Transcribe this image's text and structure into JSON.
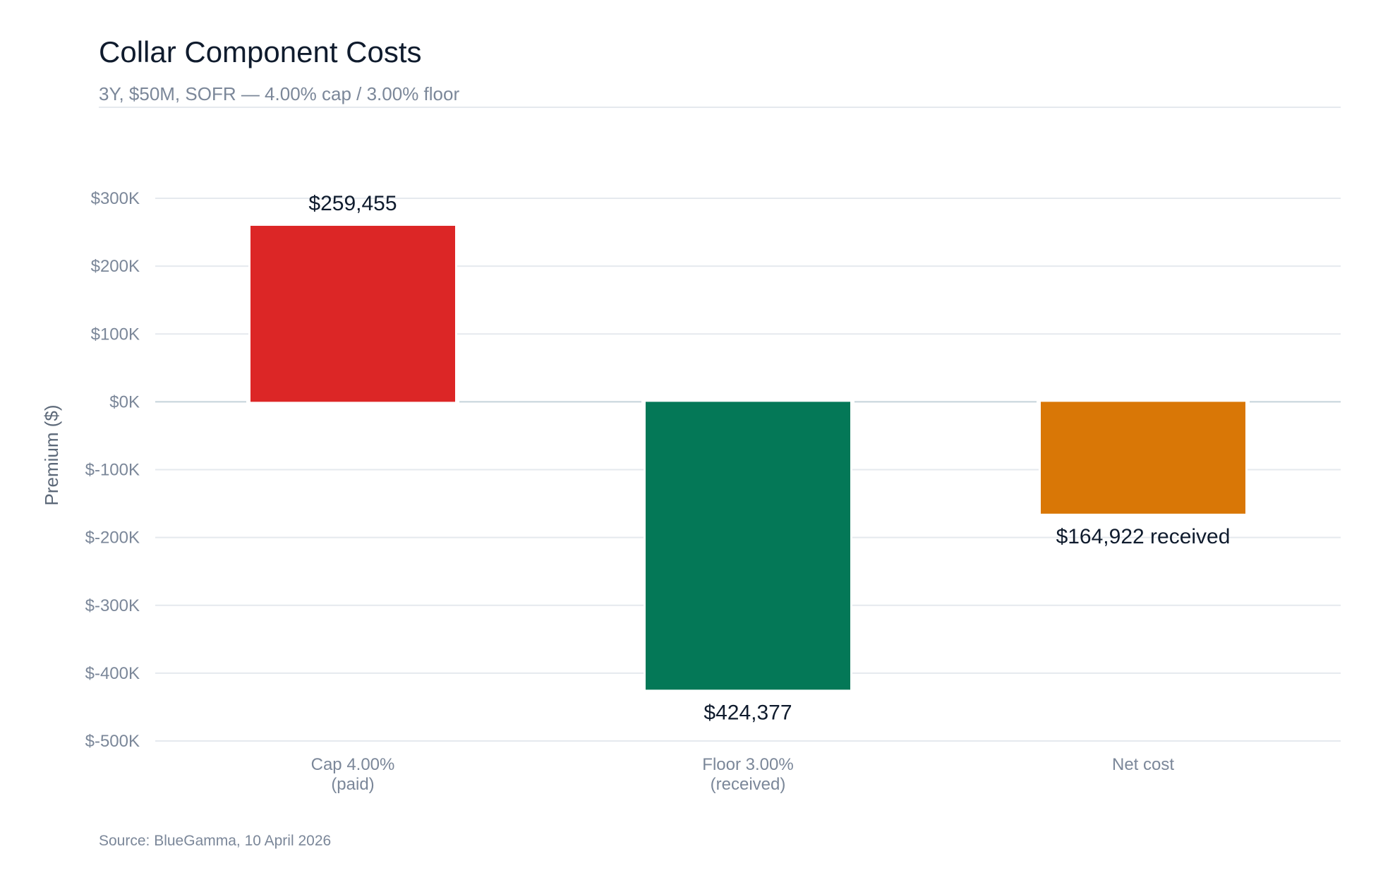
{
  "header": {
    "title": "Collar Component Costs",
    "subtitle": "3Y, $50M, SOFR — 4.00% cap / 3.00% floor"
  },
  "footer": {
    "source": "Source: BlueGamma, 10 April 2026"
  },
  "chart_data": {
    "type": "bar",
    "title": "Collar Component Costs",
    "subtitle": "3Y, $50M, SOFR — 4.00% cap / 3.00% floor",
    "xlabel": "",
    "ylabel": "Premium ($)",
    "ylim": [
      -500000,
      300000
    ],
    "yticks": [
      300000,
      200000,
      100000,
      0,
      -100000,
      -200000,
      -300000,
      -400000,
      -500000
    ],
    "ytick_labels": [
      "$300K",
      "$200K",
      "$100K",
      "$0K",
      "$-100K",
      "$-200K",
      "$-300K",
      "$-400K",
      "$-500K"
    ],
    "grid": true,
    "categories": [
      [
        "Cap 4.00%",
        "(paid)"
      ],
      [
        "Floor 3.00%",
        "(received)"
      ],
      [
        "Net cost"
      ]
    ],
    "values": [
      259455,
      -424377,
      -164922
    ],
    "data_labels": [
      "$259,455",
      "$424,377",
      "$164,922 received"
    ],
    "colors": [
      "#dc2626",
      "#047857",
      "#d97706"
    ],
    "zero_line_color": "#c5d3da",
    "grid_color": "#e5e9ee"
  }
}
